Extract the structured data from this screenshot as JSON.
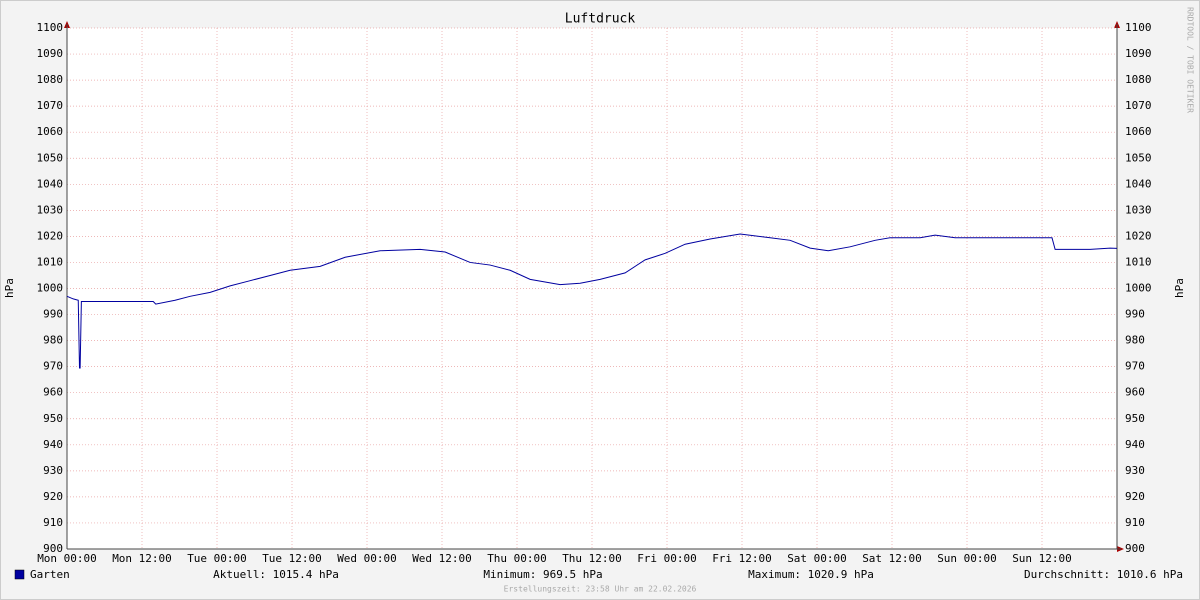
{
  "chart_data": {
    "type": "line",
    "title": "Luftdruck",
    "ylabel": "hPa",
    "y2label": "hPa",
    "watermark": "RRDTOOL / TOBI OETIKER",
    "footer": "Erstellungszeit: 23:58 Uhr am 22.02.2026",
    "xlim": [
      0,
      168
    ],
    "xticks": [
      {
        "value": 0,
        "label": "Mon 00:00"
      },
      {
        "value": 12,
        "label": "Mon 12:00"
      },
      {
        "value": 24,
        "label": "Tue 00:00"
      },
      {
        "value": 36,
        "label": "Tue 12:00"
      },
      {
        "value": 48,
        "label": "Wed 00:00"
      },
      {
        "value": 60,
        "label": "Wed 12:00"
      },
      {
        "value": 72,
        "label": "Thu 00:00"
      },
      {
        "value": 84,
        "label": "Thu 12:00"
      },
      {
        "value": 96,
        "label": "Fri 00:00"
      },
      {
        "value": 108,
        "label": "Fri 12:00"
      },
      {
        "value": 120,
        "label": "Sat 00:00"
      },
      {
        "value": 132,
        "label": "Sat 12:00"
      },
      {
        "value": 144,
        "label": "Sun 00:00"
      },
      {
        "value": 156,
        "label": "Sun 12:00"
      }
    ],
    "ylim": [
      900,
      1100
    ],
    "yticks": [
      900,
      910,
      920,
      930,
      940,
      950,
      960,
      970,
      980,
      990,
      1000,
      1010,
      1020,
      1030,
      1040,
      1050,
      1060,
      1070,
      1080,
      1090,
      1100
    ],
    "grid": true,
    "x": [
      0,
      1,
      1.8,
      2.0,
      2.1,
      2.3,
      13.8,
      14.2,
      17.3,
      19.7,
      22.9,
      26.1,
      29.3,
      32.5,
      35.7,
      40.5,
      44.5,
      50.1,
      56.5,
      60.5,
      64.5,
      67.7,
      70.9,
      74.1,
      78.9,
      82.1,
      85.3,
      89.3,
      92.5,
      95.7,
      98.9,
      102.9,
      107.7,
      112.5,
      115.7,
      118.9,
      121.8,
      125.3,
      129.3,
      131.7,
      136.5,
      138.9,
      142.1,
      157.6,
      158.1,
      163.7,
      166.9,
      168
    ],
    "series": [
      {
        "name": "Garten",
        "color": "#0000a0",
        "values": [
          997,
          996,
          995.5,
          969.5,
          969.5,
          995,
          995,
          994,
          995.5,
          997,
          998.5,
          1001,
          1003,
          1005,
          1007,
          1008.5,
          1012,
          1014.5,
          1015,
          1014,
          1010,
          1009,
          1007,
          1003.5,
          1001.5,
          1002,
          1003.5,
          1006,
          1011,
          1013.5,
          1017,
          1019,
          1020.9,
          1019.5,
          1018.5,
          1015.5,
          1014.5,
          1016,
          1018.5,
          1019.5,
          1019.5,
          1020.5,
          1019.5,
          1019.5,
          1015,
          1015,
          1015.5,
          1015.4
        ]
      }
    ],
    "stats": [
      "Aktuell: 1015.4 hPa",
      "Minimum: 969.5 hPa",
      "Maximum: 1020.9 hPa",
      "Durchschnitt: 1010.6 hPa"
    ]
  }
}
